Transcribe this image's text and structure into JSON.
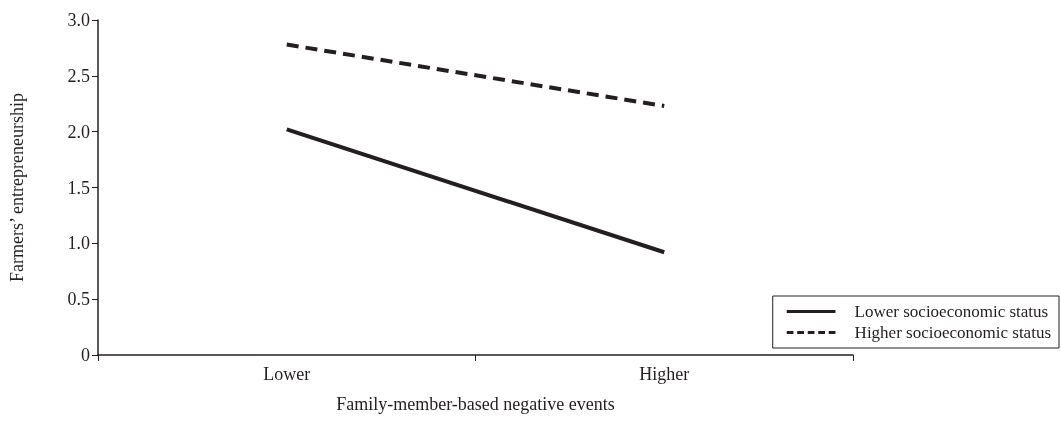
{
  "chart_data": {
    "type": "line",
    "xlabel": "Family-member-based negative events",
    "ylabel": "Farmers’ entrepreneurship",
    "categories": [
      "Lower",
      "Higher"
    ],
    "series": [
      {
        "name": "Lower socioeconomic status",
        "color": "#231f20",
        "values": [
          2.02,
          0.92
        ],
        "line_style": "solid"
      },
      {
        "name": "Higher socioeconomic status",
        "color": "#231f20",
        "values": [
          2.78,
          2.23
        ],
        "line_style": "dashed"
      }
    ],
    "ylim": [
      0,
      3
    ],
    "yticks": [
      {
        "value": 0,
        "label": "0"
      },
      {
        "value": 0.5,
        "label": "0.5"
      },
      {
        "value": 1,
        "label": "1.0"
      },
      {
        "value": 1.5,
        "label": "1.5"
      },
      {
        "value": 2,
        "label": "2.0"
      },
      {
        "value": 2.5,
        "label": "2.5"
      },
      {
        "value": 3,
        "label": "3.0"
      }
    ],
    "grid": false,
    "legend": "bottom right",
    "marker": "none"
  }
}
